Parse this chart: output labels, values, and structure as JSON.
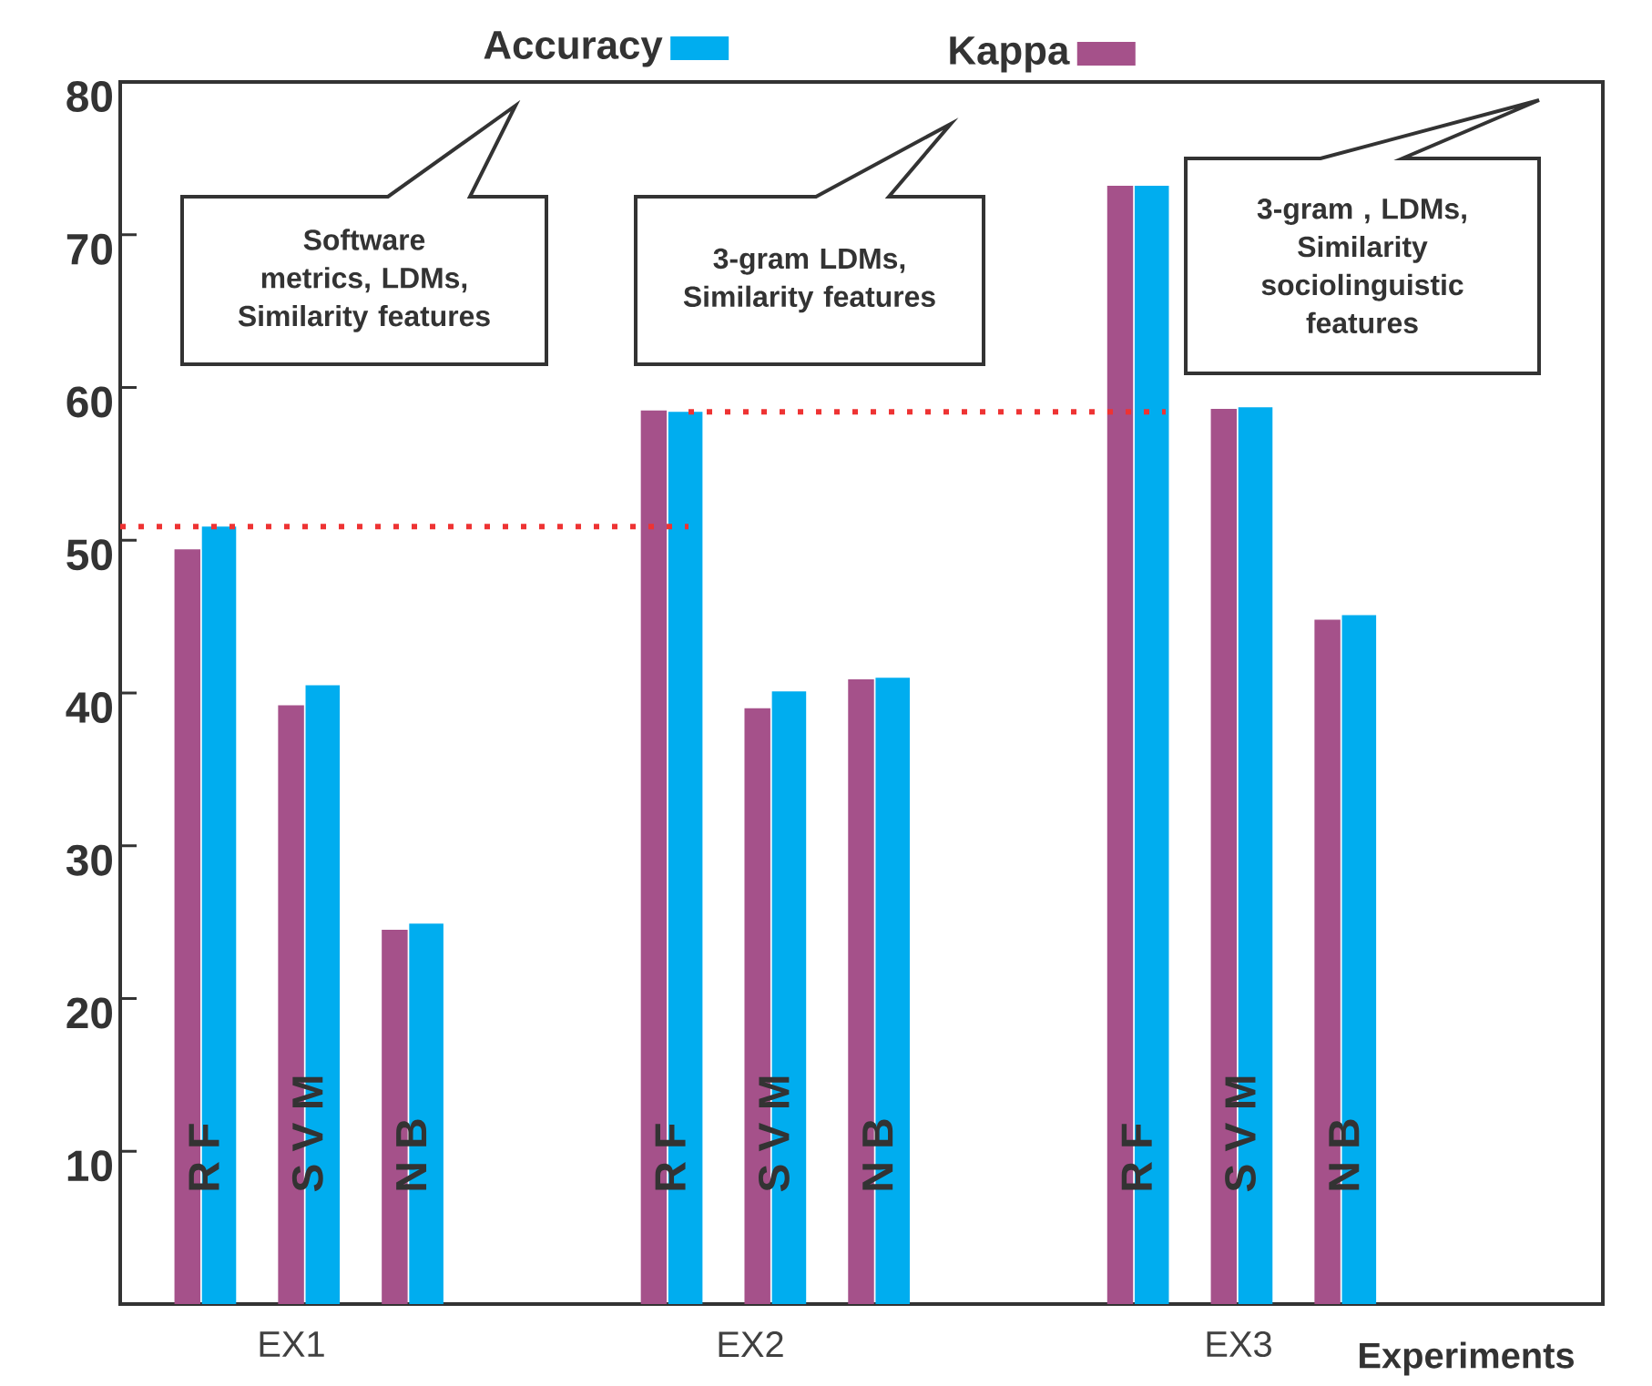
{
  "chart_data": {
    "type": "bar",
    "xlabel": "Experiments",
    "categories": [
      "R F",
      "S V M",
      "N B",
      "R F",
      "S V M",
      "N B",
      "R F",
      "S V M",
      "N B"
    ],
    "series": [
      {
        "name": "Accuracy",
        "color": "#00adef",
        "values": [
          50.9,
          40.5,
          24.9,
          58.4,
          40.1,
          41.0,
          73.2,
          58.7,
          45.1
        ]
      },
      {
        "name": "Kappa",
        "color": "#a5518a",
        "values": [
          49.4,
          39.2,
          24.5,
          58.5,
          39.0,
          40.9,
          73.2,
          58.6,
          44.8
        ]
      }
    ],
    "ylim": [
      0,
      80
    ],
    "yticks": [
      10,
      20,
      30,
      40,
      50,
      60,
      70,
      80
    ],
    "legend": "top",
    "ref_lines": [
      {
        "axis": "y",
        "value": 50.9,
        "color": "#ee3333",
        "line_style": "dotted"
      },
      {
        "axis": "y",
        "value": 58.4,
        "color": "#ee3333",
        "line_style": "dotted"
      }
    ],
    "annotations": [
      "Software metrics, LDMs, Similarity features",
      "3-gram  LDMs, Similarity features",
      "3-gram , LDMs, Similarity sociolinguistic features",
      "EX1",
      "EX2",
      "EX3"
    ]
  }
}
